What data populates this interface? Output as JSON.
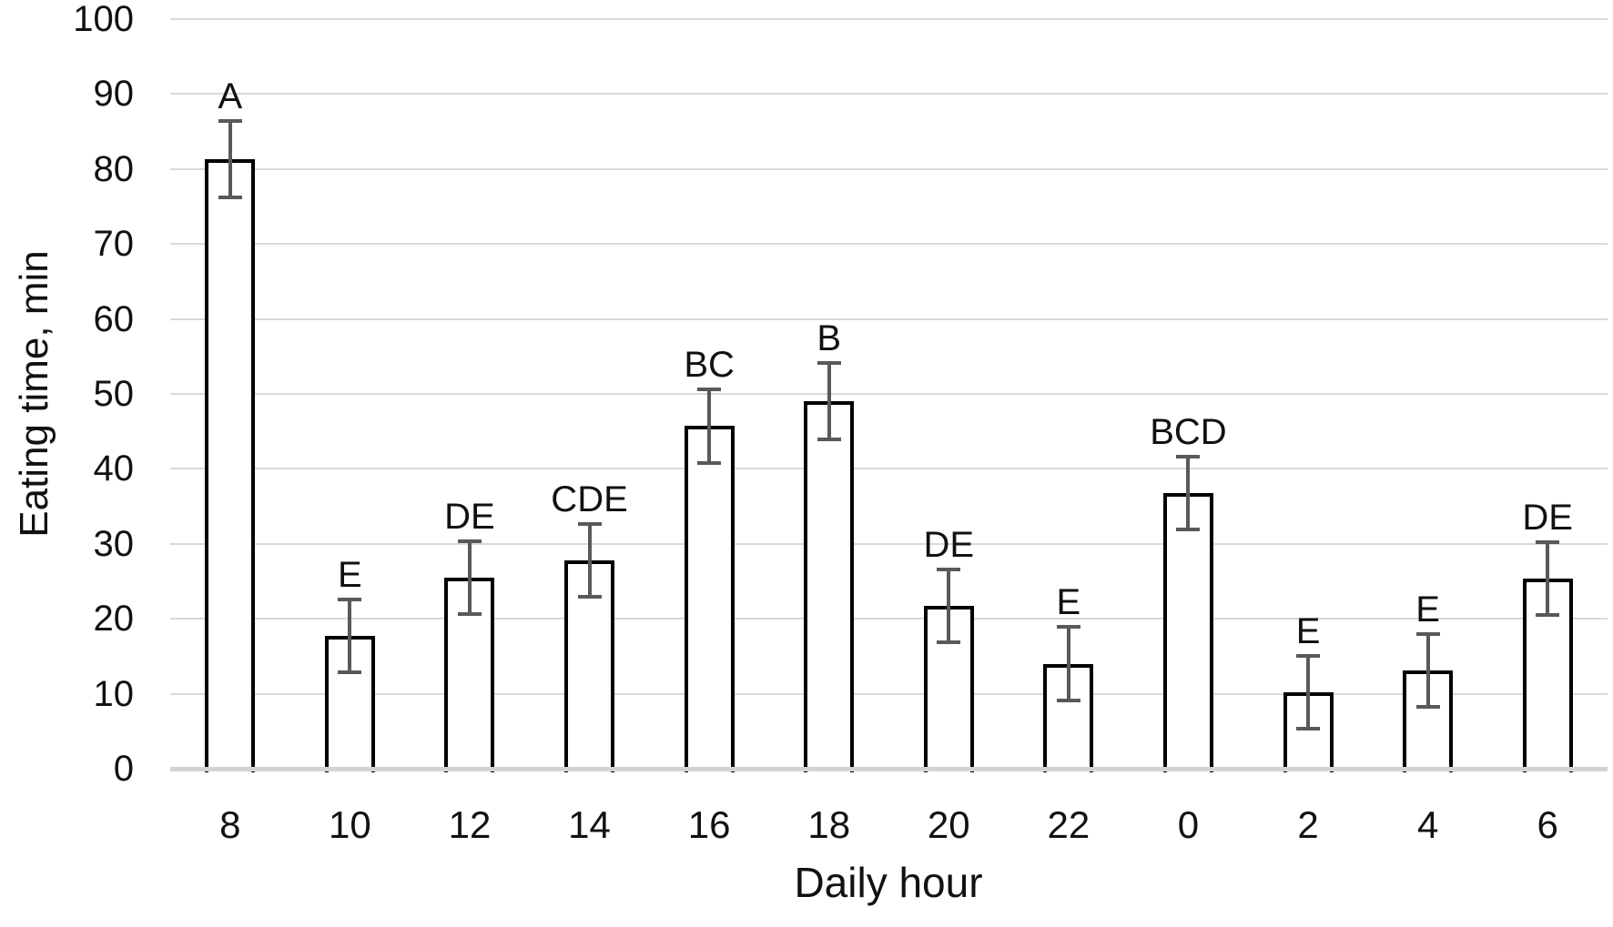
{
  "chart_data": {
    "type": "bar",
    "title": "",
    "xlabel": "Daily hour",
    "ylabel": "Eating time, min",
    "categories": [
      "8",
      "10",
      "12",
      "14",
      "16",
      "18",
      "20",
      "22",
      "0",
      "2",
      "4",
      "6"
    ],
    "values": [
      81.3,
      17.7,
      25.5,
      27.8,
      45.7,
      49.0,
      21.7,
      14.0,
      36.8,
      10.2,
      13.1,
      25.4
    ],
    "error_bars": [
      5.2,
      5.0,
      5.0,
      5.0,
      5.0,
      5.2,
      5.0,
      5.0,
      5.0,
      5.0,
      5.0,
      5.0
    ],
    "sig_letters": [
      "A",
      "E",
      "DE",
      "CDE",
      "BC",
      "B",
      "DE",
      "E",
      "BCD",
      "E",
      "E",
      "DE"
    ],
    "ylim": [
      0,
      100
    ],
    "yticks": [
      0,
      10,
      20,
      30,
      40,
      50,
      60,
      70,
      80,
      90,
      100
    ],
    "grid": "horizontal",
    "legend": "none",
    "colors": {
      "bar_fill": "#ffffff",
      "bar_border": "#000000",
      "error_bar": "#595959",
      "gridline": "#d9d9d9",
      "axis_line": "#d3d3d3",
      "text": "#111111"
    }
  }
}
